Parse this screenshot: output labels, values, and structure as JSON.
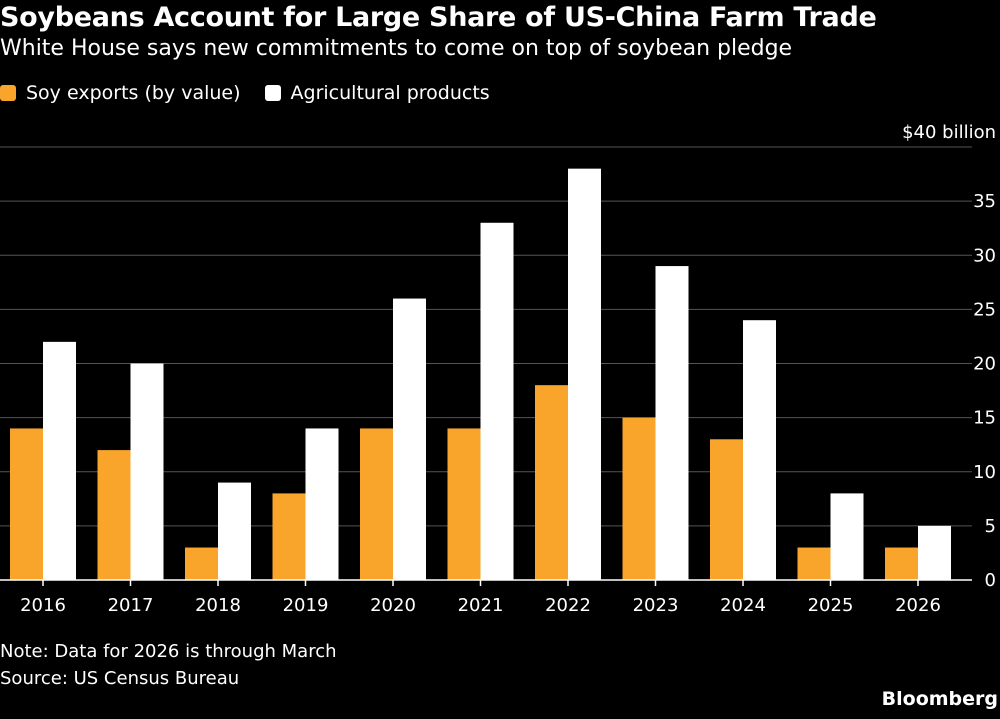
{
  "header": {
    "title": "Soybeans Account for Large Share of US-China Farm Trade",
    "subtitle": "White House says new commitments to come on top of soybean pledge"
  },
  "legend": [
    {
      "label": "Soy exports (by value)",
      "color": "#f9a52b"
    },
    {
      "label": "Agricultural products",
      "color": "#ffffff"
    }
  ],
  "footer": {
    "note": "Note: Data for 2026 is through March",
    "source": "Source: US Census Bureau",
    "brand": "Bloomberg"
  },
  "chart_data": {
    "type": "bar",
    "categories": [
      "2016",
      "2017",
      "2018",
      "2019",
      "2020",
      "2021",
      "2022",
      "2023",
      "2024",
      "2025",
      "2026"
    ],
    "series": [
      {
        "name": "Soy exports (by value)",
        "color": "#f9a52b",
        "values": [
          14,
          12,
          3,
          8,
          14,
          14,
          18,
          15,
          13,
          3,
          3
        ]
      },
      {
        "name": "Agricultural products",
        "color": "#ffffff",
        "values": [
          22,
          20,
          9,
          14,
          26,
          33,
          38,
          29,
          24,
          8,
          5
        ]
      }
    ],
    "ylim": [
      0,
      40
    ],
    "yticks": [
      {
        "value": 0,
        "label": "0"
      },
      {
        "value": 5,
        "label": "5"
      },
      {
        "value": 10,
        "label": "10"
      },
      {
        "value": 15,
        "label": "15"
      },
      {
        "value": 20,
        "label": "20"
      },
      {
        "value": 25,
        "label": "25"
      },
      {
        "value": 30,
        "label": "30"
      },
      {
        "value": 35,
        "label": "35"
      },
      {
        "value": 40,
        "label": "$40 billion"
      }
    ],
    "grid": true,
    "legend_position": "top-left",
    "xlabel": "",
    "ylabel": ""
  }
}
